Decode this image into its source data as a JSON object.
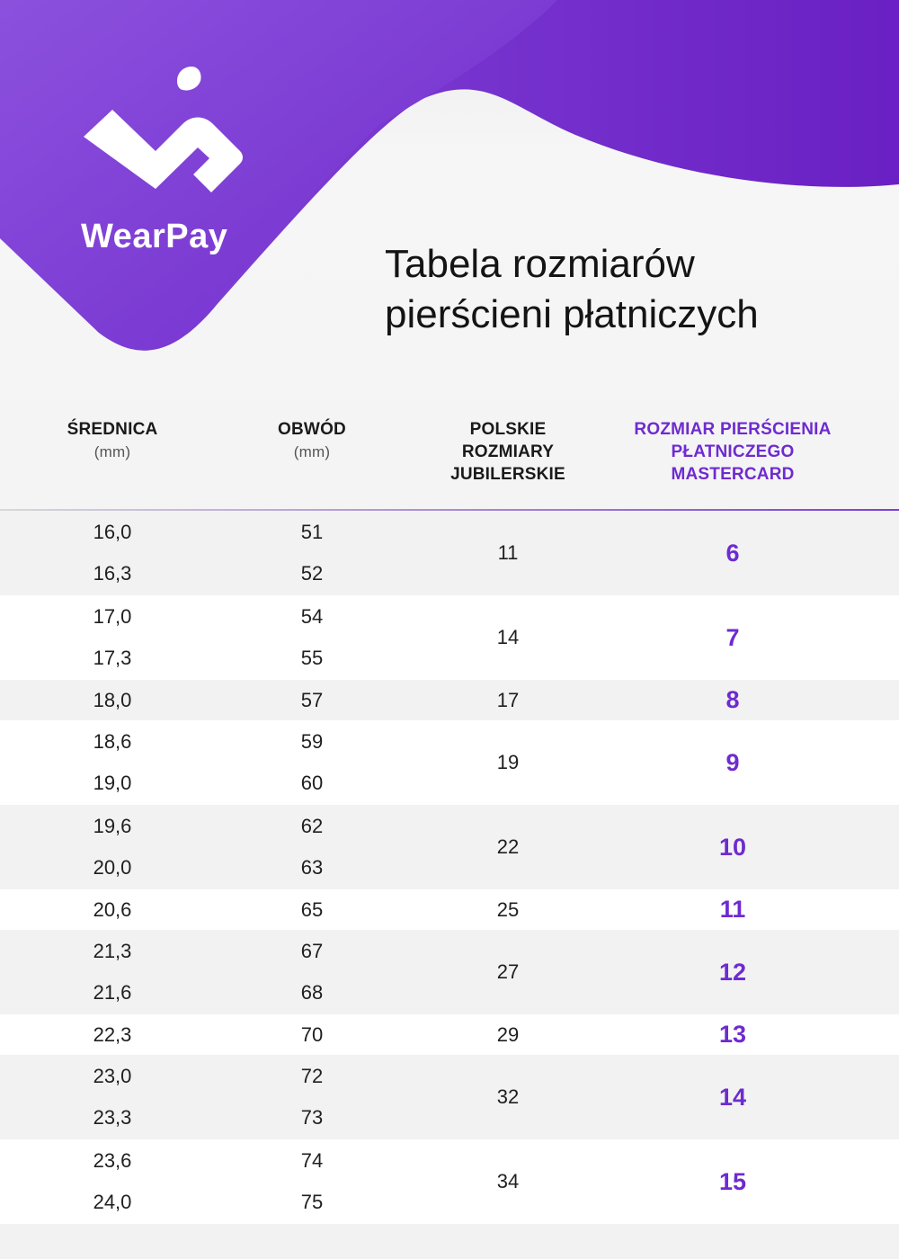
{
  "brand": {
    "name": "WearPay"
  },
  "title": {
    "line1": "Tabela rozmiarów",
    "line2": "pierścieni płatniczych"
  },
  "colors": {
    "purple_light": "#8a4fdc",
    "purple_dark": "#6a22c6",
    "accent": "#6e2bd0",
    "stripe": "#f2f2f2",
    "white": "#ffffff"
  },
  "table": {
    "headers": {
      "diameter": {
        "label": "ŚREDNICA",
        "unit": "(mm)"
      },
      "circumference": {
        "label": "OBWÓD",
        "unit": "(mm)"
      },
      "polish": {
        "line1": "POLSKIE",
        "line2": "ROZMIARY",
        "line3": "JUBILERSKIE"
      },
      "mastercard": {
        "line1": "ROZMIAR PIERŚCIENIA",
        "line2": "PŁATNICZEGO",
        "line3": "MASTERCARD"
      }
    },
    "groups": [
      {
        "polish": "11",
        "mastercard": "6",
        "rows": [
          {
            "diameter": "16,0",
            "circumference": "51"
          },
          {
            "diameter": "16,3",
            "circumference": "52"
          }
        ]
      },
      {
        "polish": "14",
        "mastercard": "7",
        "rows": [
          {
            "diameter": "17,0",
            "circumference": "54"
          },
          {
            "diameter": "17,3",
            "circumference": "55"
          }
        ]
      },
      {
        "polish": "17",
        "mastercard": "8",
        "rows": [
          {
            "diameter": "18,0",
            "circumference": "57"
          }
        ]
      },
      {
        "polish": "19",
        "mastercard": "9",
        "rows": [
          {
            "diameter": "18,6",
            "circumference": "59"
          },
          {
            "diameter": "19,0",
            "circumference": "60"
          }
        ]
      },
      {
        "polish": "22",
        "mastercard": "10",
        "rows": [
          {
            "diameter": "19,6",
            "circumference": "62"
          },
          {
            "diameter": "20,0",
            "circumference": "63"
          }
        ]
      },
      {
        "polish": "25",
        "mastercard": "11",
        "rows": [
          {
            "diameter": "20,6",
            "circumference": "65"
          }
        ]
      },
      {
        "polish": "27",
        "mastercard": "12",
        "rows": [
          {
            "diameter": "21,3",
            "circumference": "67"
          },
          {
            "diameter": "21,6",
            "circumference": "68"
          }
        ]
      },
      {
        "polish": "29",
        "mastercard": "13",
        "rows": [
          {
            "diameter": "22,3",
            "circumference": "70"
          }
        ]
      },
      {
        "polish": "32",
        "mastercard": "14",
        "rows": [
          {
            "diameter": "23,0",
            "circumference": "72"
          },
          {
            "diameter": "23,3",
            "circumference": "73"
          }
        ]
      },
      {
        "polish": "34",
        "mastercard": "15",
        "rows": [
          {
            "diameter": "23,6",
            "circumference": "74"
          },
          {
            "diameter": "24,0",
            "circumference": "75"
          }
        ]
      }
    ]
  }
}
